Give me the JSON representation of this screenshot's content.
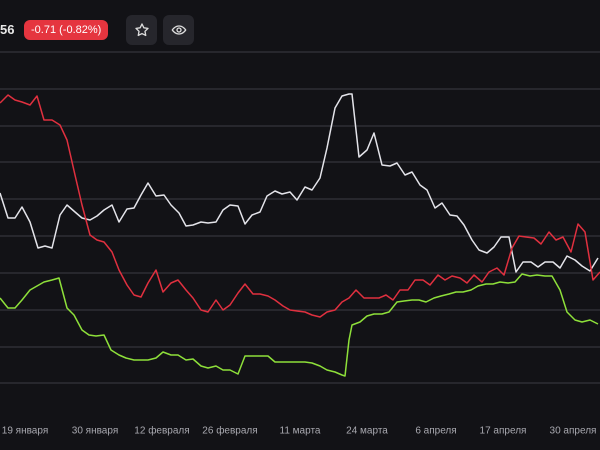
{
  "header": {
    "price_fragment": "56",
    "change": "-0.71 (-0.82%)"
  },
  "chart_data": {
    "type": "line",
    "xlim": [
      0,
      600
    ],
    "ylim": [
      0,
      390
    ],
    "grid": true,
    "yticks": [
      37,
      73,
      110,
      147,
      184,
      221,
      258,
      294,
      331,
      368
    ],
    "xticks": [
      {
        "value": 25,
        "label": "19 января"
      },
      {
        "value": 95,
        "label": "30 января"
      },
      {
        "value": 162,
        "label": "12 февраля"
      },
      {
        "value": 230,
        "label": "26 февраля"
      },
      {
        "value": 300,
        "label": "11 марта"
      },
      {
        "value": 367,
        "label": "24 марта"
      },
      {
        "value": 436,
        "label": "6 апреля"
      },
      {
        "value": 503,
        "label": "17 апреля"
      },
      {
        "value": 573,
        "label": "30 апреля"
      }
    ],
    "series": [
      {
        "color": "#e4e4ea",
        "x": [
          0,
          8,
          15,
          22,
          30,
          38,
          45,
          52,
          60,
          67,
          75,
          82,
          90,
          97,
          104,
          112,
          119,
          127,
          134,
          141,
          148,
          156,
          164,
          171,
          179,
          186,
          193,
          201,
          208,
          216,
          223,
          230,
          238,
          245,
          252,
          260,
          267,
          275,
          282,
          290,
          297,
          305,
          312,
          320,
          327,
          335,
          342,
          349,
          352,
          359,
          367,
          374,
          382,
          390,
          397,
          405,
          412,
          420,
          427,
          435,
          442,
          450,
          457,
          464,
          472,
          479,
          487,
          494,
          501,
          509,
          516,
          523,
          531,
          538,
          545,
          553,
          560,
          567,
          575,
          582,
          590,
          598
        ],
        "values": [
          227,
          202,
          202,
          213,
          198,
          172,
          174,
          172,
          205,
          215,
          208,
          202,
          200,
          204,
          210,
          215,
          198,
          211,
          212,
          225,
          237,
          224,
          225,
          215,
          207,
          194,
          195,
          198,
          197,
          198,
          210,
          215,
          214,
          196,
          205,
          208,
          224,
          229,
          226,
          228,
          220,
          233,
          230,
          242,
          272,
          312,
          324,
          326,
          326,
          263,
          270,
          287,
          255,
          254,
          257,
          245,
          248,
          235,
          230,
          212,
          217,
          205,
          204,
          195,
          180,
          170,
          167,
          173,
          183,
          183,
          148,
          158,
          158,
          153,
          158,
          158,
          152,
          164,
          160,
          154,
          149,
          162
        ]
      },
      {
        "color": "#e0303f",
        "x": [
          0,
          8,
          15,
          22,
          30,
          37,
          44,
          52,
          60,
          67,
          75,
          82,
          90,
          97,
          104,
          112,
          119,
          127,
          134,
          141,
          148,
          156,
          163,
          171,
          178,
          186,
          193,
          201,
          208,
          216,
          223,
          230,
          238,
          245,
          253,
          260,
          268,
          275,
          283,
          290,
          297,
          305,
          312,
          320,
          327,
          335,
          342,
          349,
          356,
          364,
          371,
          379,
          386,
          393,
          400,
          408,
          415,
          423,
          430,
          438,
          445,
          452,
          460,
          467,
          474,
          482,
          489,
          497,
          504,
          512,
          519,
          526,
          534,
          541,
          549,
          556,
          563,
          571,
          578,
          585,
          593,
          600
        ],
        "values": [
          317,
          325,
          320,
          318,
          315,
          324,
          300,
          300,
          295,
          280,
          245,
          215,
          185,
          180,
          178,
          168,
          150,
          135,
          125,
          123,
          137,
          150,
          128,
          137,
          140,
          130,
          122,
          110,
          108,
          120,
          110,
          115,
          127,
          136,
          126,
          126,
          124,
          120,
          114,
          110,
          109,
          108,
          105,
          103,
          108,
          110,
          118,
          122,
          130,
          122,
          122,
          122,
          125,
          120,
          130,
          130,
          140,
          140,
          135,
          145,
          140,
          144,
          142,
          137,
          145,
          138,
          148,
          152,
          145,
          172,
          184,
          183,
          182,
          176,
          188,
          180,
          183,
          168,
          196,
          188,
          140,
          148
        ]
      },
      {
        "color": "#8ee03a",
        "x": [
          0,
          8,
          15,
          22,
          30,
          37,
          44,
          52,
          59,
          67,
          74,
          82,
          89,
          96,
          104,
          111,
          119,
          126,
          134,
          141,
          148,
          156,
          163,
          171,
          178,
          186,
          193,
          201,
          208,
          216,
          223,
          230,
          238,
          245,
          253,
          260,
          268,
          275,
          283,
          290,
          298,
          305,
          312,
          320,
          327,
          335,
          342,
          345,
          349,
          352,
          360,
          367,
          374,
          382,
          389,
          397,
          404,
          412,
          419,
          426,
          434,
          441,
          449,
          456,
          463,
          471,
          478,
          486,
          493,
          500,
          508,
          515,
          522,
          530,
          537,
          545,
          552,
          560,
          567,
          575,
          582,
          590,
          598
        ],
        "values": [
          122,
          112,
          112,
          120,
          130,
          134,
          138,
          140,
          142,
          112,
          105,
          90,
          85,
          84,
          85,
          70,
          65,
          62,
          60,
          60,
          60,
          62,
          68,
          65,
          65,
          60,
          61,
          54,
          52,
          54,
          50,
          50,
          46,
          64,
          64,
          64,
          64,
          58,
          58,
          58,
          58,
          58,
          57,
          54,
          50,
          48,
          45,
          44,
          80,
          95,
          98,
          104,
          106,
          106,
          108,
          118,
          119,
          120,
          120,
          118,
          122,
          124,
          126,
          128,
          128,
          130,
          134,
          136,
          136,
          138,
          137,
          138,
          146,
          144,
          145,
          144,
          144,
          130,
          108,
          100,
          98,
          100,
          96
        ]
      }
    ]
  }
}
